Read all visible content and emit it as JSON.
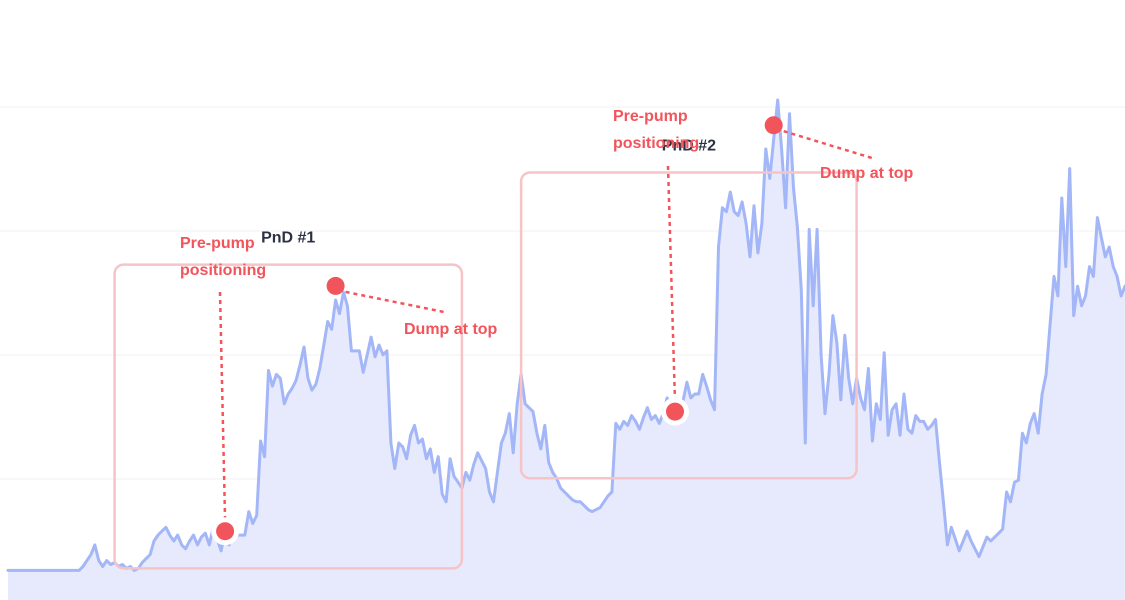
{
  "chart_data": {
    "type": "area",
    "colors": {
      "line": "#a3b6f7",
      "fill": "#e7eafc",
      "accent": "#f2545b",
      "box": "#f6c4c6"
    },
    "grid": true,
    "x_axis_visible": false,
    "y_axis_visible": false,
    "series": [
      {
        "values": [
          2.0,
          2.0,
          2.0,
          2.0,
          2.0,
          2.0,
          2.0,
          2.0,
          2.0,
          2.0,
          2.0,
          2.0,
          2.0,
          2.0,
          2.0,
          2.0,
          2.0,
          2.0,
          2.0,
          2.4,
          3.0,
          3.6,
          4.6,
          3.0,
          2.4,
          3.0,
          2.6,
          2.8,
          2.4,
          2.6,
          2.2,
          2.4,
          2.0,
          2.2,
          2.8,
          3.2,
          3.6,
          5.0,
          5.6,
          6.0,
          6.4,
          5.6,
          5.0,
          5.6,
          4.6,
          4.2,
          5.0,
          5.6,
          4.6,
          5.4,
          5.8,
          4.6,
          6.4,
          5.2,
          4.0,
          6.0,
          4.6,
          6.6,
          5.6,
          5.6,
          5.6,
          8.0,
          6.8,
          7.6,
          15.2,
          13.6,
          22.4,
          20.8,
          22.0,
          21.6,
          19.0,
          20.0,
          20.6,
          21.4,
          23.0,
          24.8,
          21.6,
          20.4,
          21.0,
          22.6,
          25.0,
          27.4,
          26.6,
          29.6,
          28.2,
          30.4,
          29.0,
          24.4,
          24.4,
          24.4,
          22.2,
          24.0,
          25.8,
          23.8,
          25.0,
          24.0,
          24.4,
          15.0,
          12.4,
          15.0,
          14.6,
          13.4,
          15.8,
          16.8,
          15.0,
          15.4,
          13.4,
          14.4,
          12.0,
          13.6,
          9.8,
          9.0,
          13.4,
          11.6,
          11.0,
          10.4,
          12.0,
          11.2,
          12.8,
          14.0,
          13.2,
          12.4,
          10.0,
          9.0,
          12.0,
          15.0,
          16.0,
          18.0,
          14.0,
          19.0,
          22.0,
          19.0,
          18.6,
          18.2,
          16.0,
          14.4,
          16.8,
          13.0,
          12.0,
          11.4,
          10.4,
          10.0,
          9.6,
          9.2,
          9.0,
          9.0,
          8.6,
          8.2,
          8.0,
          8.2,
          8.4,
          9.0,
          9.6,
          10.0,
          17.0,
          16.4,
          17.2,
          16.8,
          17.8,
          17.2,
          16.4,
          17.6,
          18.6,
          17.4,
          17.8,
          17.0,
          18.0,
          19.6,
          18.6,
          18.2,
          18.8,
          19.2,
          21.2,
          19.6,
          20.0,
          20.0,
          22.0,
          20.8,
          19.4,
          18.4,
          35.0,
          39.0,
          38.6,
          40.6,
          38.6,
          38.2,
          39.6,
          37.4,
          34.0,
          39.2,
          34.4,
          37.4,
          45.0,
          42.0,
          46.0,
          50.0,
          45.0,
          39.0,
          48.6,
          41.0,
          37.0,
          30.6,
          15.0,
          36.8,
          29.0,
          36.8,
          24.0,
          18.0,
          22.0,
          28.0,
          25.2,
          19.4,
          26.0,
          21.6,
          19.0,
          21.6,
          19.6,
          18.4,
          22.6,
          15.2,
          19.0,
          17.4,
          24.2,
          15.8,
          18.4,
          19.0,
          15.8,
          20.0,
          16.4,
          16.0,
          17.8,
          17.2,
          17.2,
          16.4,
          16.8,
          17.4,
          13.0,
          9.0,
          4.6,
          6.4,
          5.2,
          4.0,
          5.0,
          6.0,
          5.0,
          4.2,
          3.4,
          4.4,
          5.4,
          5.0,
          5.4,
          5.8,
          6.2,
          10.0,
          9.0,
          11.0,
          11.2,
          16.0,
          15.0,
          17.0,
          18.0,
          16.0,
          20.0,
          22.0,
          27.0,
          32.0,
          30.0,
          40.0,
          33.0,
          43.0,
          28.0,
          31.0,
          29.0,
          30.0,
          33.0,
          32.0,
          38.0,
          36.0,
          34.0,
          35.0,
          33.0,
          32.0,
          30.0,
          31.0
        ]
      }
    ],
    "boxes": [
      {
        "title": "PnD #1",
        "x_start_index": 27,
        "x_end_index": 115,
        "y_min": 2.2,
        "y_max": 33.2,
        "pre_label_line1": "Pre-pump",
        "pre_label_line2": "positioning",
        "pre_index": 55,
        "top_label": "Dump at top",
        "top_index": 83
      },
      {
        "title": "PnD #2",
        "x_start_index": 130,
        "x_end_index": 215,
        "y_min": 11.4,
        "y_max": 42.6,
        "pre_label_line1": "Pre-pump",
        "pre_label_line2": "positioning",
        "pre_index": 169,
        "top_label": "Dump at top",
        "top_index": 194
      }
    ],
    "ylim": [
      0,
      50
    ]
  }
}
